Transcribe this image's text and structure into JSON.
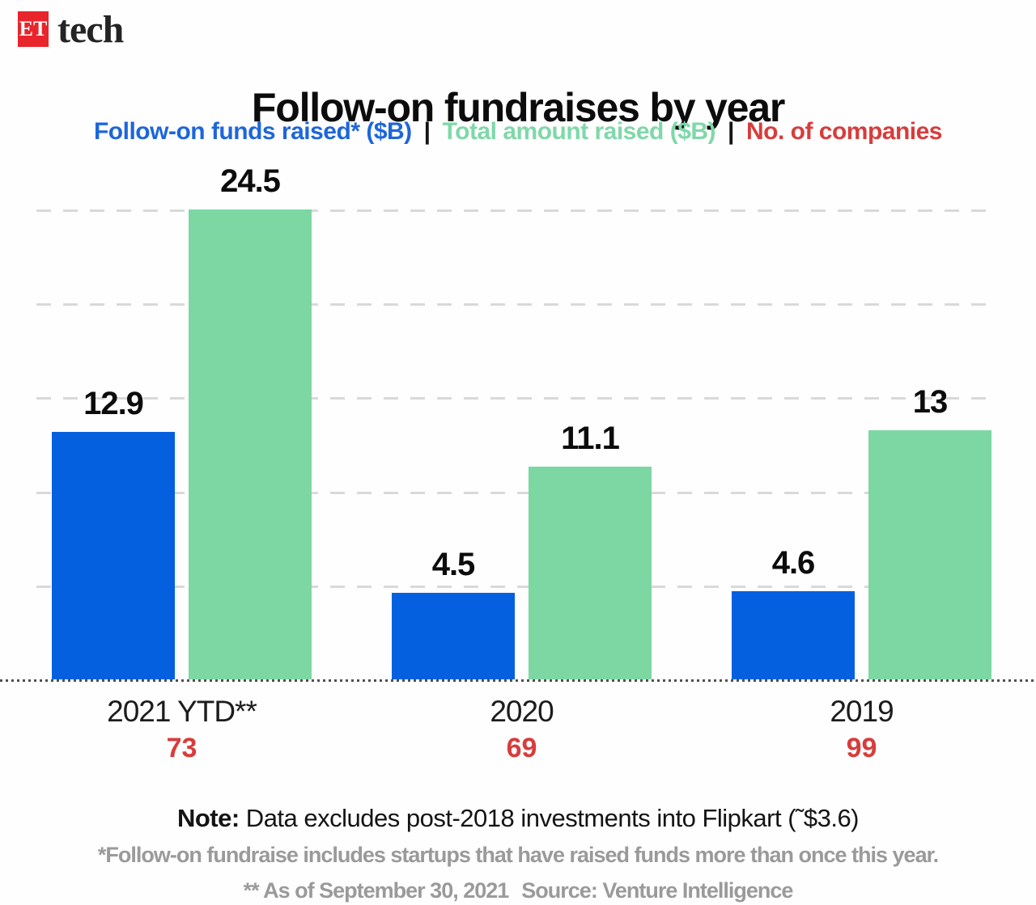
{
  "brand": {
    "logo_box_text": "ET",
    "logo_box_color": "#e8252b",
    "logo_suffix": "tech"
  },
  "title": "Follow-on fundraises by year",
  "legend": {
    "separator": "|",
    "items": [
      {
        "label": "Follow-on funds raised* ($B)",
        "color": "#1e66d9"
      },
      {
        "label": "Total amount raised ($B)",
        "color": "#7fd8a9"
      },
      {
        "label": "No. of companies",
        "color": "#d83c3c"
      }
    ]
  },
  "chart_data": {
    "type": "bar",
    "categories": [
      "2021 YTD**",
      "2020",
      "2019"
    ],
    "series": [
      {
        "name": "Follow-on funds raised* ($B)",
        "color": "#0560df",
        "values": [
          12.9,
          4.5,
          4.6
        ]
      },
      {
        "name": "Total amount raised ($B)",
        "color": "#7cd7a3",
        "values": [
          24.5,
          11.1,
          13
        ]
      }
    ],
    "annotations": {
      "name": "No. of companies",
      "color": "#d83c3c",
      "values": [
        73,
        69,
        99
      ]
    },
    "ylim": [
      0,
      24.5
    ],
    "grid": "horizontal-dashed",
    "gridline_count": 5,
    "value_labels": true,
    "legend_position": "top",
    "xlabel": "",
    "ylabel": ""
  },
  "footer": {
    "note_label": "Note:",
    "note_text": " Data excludes post-2018 investments into Flipkart (˜$3.6)",
    "footnote1": "*Follow-on fundraise includes startups that have raised funds more than once this year.",
    "footnote2_prefix": "** As of September 30, 2021",
    "source_label": "Source:",
    "source_text": " Venture Intelligence"
  }
}
